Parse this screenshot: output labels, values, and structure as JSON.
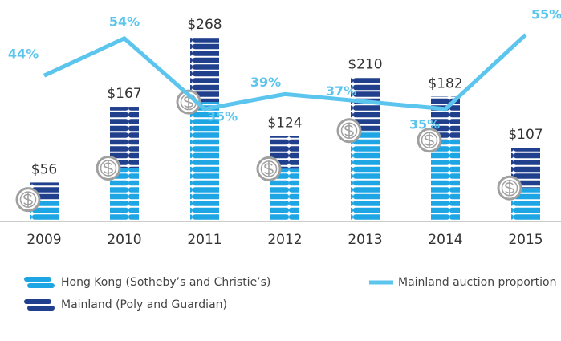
{
  "chart_data": {
    "type": "bar",
    "stacked": true,
    "categories": [
      "2009",
      "2010",
      "2011",
      "2012",
      "2013",
      "2014",
      "2015"
    ],
    "series": [
      {
        "name": "Hong Kong (Sotheby’s and Christie’s)",
        "color": "#1ea5e3",
        "values": [
          31,
          77,
          174,
          76,
          132,
          118,
          48
        ]
      },
      {
        "name": "Mainland (Poly and Guardian)",
        "color": "#203f8c",
        "values": [
          25,
          90,
          94,
          48,
          78,
          64,
          59
        ]
      },
      {
        "name": "Mainland auction proportion",
        "type": "line",
        "axis": "y2",
        "color": "#5bc5ee",
        "values": [
          44,
          54,
          35,
          39,
          37,
          35,
          55
        ],
        "value_labels": [
          "44%",
          "54%",
          "35%",
          "39%",
          "37%",
          "35%",
          "55%"
        ]
      }
    ],
    "totals": {
      "values": [
        56,
        167,
        268,
        124,
        210,
        182,
        107
      ],
      "value_labels": [
        "$56",
        "$167",
        "$268",
        "$124",
        "$210",
        "$182",
        "$107"
      ]
    },
    "ylim": [
      0,
      300
    ],
    "y2lim": [
      5,
      60
    ]
  }
}
